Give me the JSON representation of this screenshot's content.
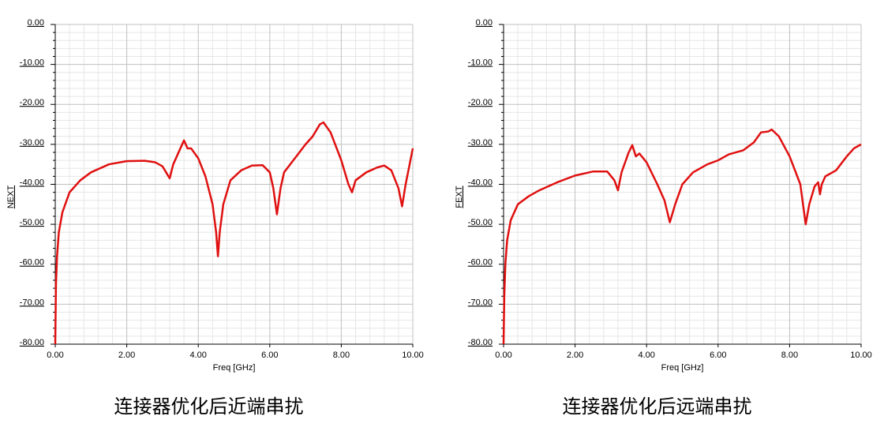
{
  "chart_data": [
    {
      "type": "line",
      "caption": "连接器优化后近端串扰",
      "xlabel": "Freq [GHz]",
      "ylabel": "NEXT",
      "xlim": [
        0,
        10
      ],
      "ylim": [
        -80,
        0
      ],
      "grid": true,
      "xticks": [
        {
          "value": 0,
          "label": "0.00"
        },
        {
          "value": 2,
          "label": "2.00"
        },
        {
          "value": 4,
          "label": "4.00"
        },
        {
          "value": 6,
          "label": "6.00"
        },
        {
          "value": 8,
          "label": "8.00"
        },
        {
          "value": 10,
          "label": "10.00"
        }
      ],
      "yticks": [
        {
          "value": 0,
          "label": "0.00"
        },
        {
          "value": -10,
          "label": "-10.00"
        },
        {
          "value": -20,
          "label": "-20.00"
        },
        {
          "value": -30,
          "label": "-30.00"
        },
        {
          "value": -40,
          "label": "-40.00"
        },
        {
          "value": -50,
          "label": "-50.00"
        },
        {
          "value": -60,
          "label": "-60.00"
        },
        {
          "value": -70,
          "label": "-70.00"
        },
        {
          "value": -80,
          "label": "-80.00"
        }
      ],
      "x": [
        0,
        0.02,
        0.05,
        0.1,
        0.2,
        0.4,
        0.7,
        1.0,
        1.5,
        2.0,
        2.5,
        2.8,
        3.0,
        3.1,
        3.2,
        3.3,
        3.5,
        3.6,
        3.7,
        3.8,
        4.0,
        4.2,
        4.4,
        4.5,
        4.55,
        4.6,
        4.7,
        4.9,
        5.2,
        5.5,
        5.8,
        6.0,
        6.1,
        6.2,
        6.3,
        6.4,
        6.7,
        7.0,
        7.2,
        7.4,
        7.5,
        7.7,
        8.0,
        8.2,
        8.3,
        8.4,
        8.7,
        9.0,
        9.2,
        9.4,
        9.6,
        9.7,
        9.8,
        10.0
      ],
      "series": [
        {
          "color": "#e01010",
          "values": [
            -80,
            -65,
            -58,
            -52,
            -47,
            -42,
            -39,
            -37,
            -35,
            -34.2,
            -34.1,
            -34.5,
            -35.5,
            -37,
            -38.5,
            -35,
            -31,
            -29,
            -31,
            -31,
            -33.5,
            -38,
            -45,
            -52,
            -58,
            -52,
            -45,
            -39,
            -36.5,
            -35.3,
            -35.2,
            -37,
            -41,
            -47.5,
            -41,
            -37,
            -33.5,
            -30,
            -28,
            -25,
            -24.5,
            -27,
            -34,
            -40,
            -42,
            -39,
            -37,
            -35.8,
            -35.3,
            -36.5,
            -41,
            -45.5,
            -40,
            -31
          ]
        }
      ]
    },
    {
      "type": "line",
      "caption": "连接器优化后远端串扰",
      "xlabel": "Freq [GHz]",
      "ylabel": "FEXT",
      "xlim": [
        0,
        10
      ],
      "ylim": [
        -80,
        0
      ],
      "grid": true,
      "xticks": [
        {
          "value": 0,
          "label": "0.00"
        },
        {
          "value": 2,
          "label": "2.00"
        },
        {
          "value": 4,
          "label": "4.00"
        },
        {
          "value": 6,
          "label": "6.00"
        },
        {
          "value": 8,
          "label": "8.00"
        },
        {
          "value": 10,
          "label": "10.00"
        }
      ],
      "yticks": [
        {
          "value": 0,
          "label": "0.00"
        },
        {
          "value": -10,
          "label": "-10.00"
        },
        {
          "value": -20,
          "label": "-20.00"
        },
        {
          "value": -30,
          "label": "-30.00"
        },
        {
          "value": -40,
          "label": "-40.00"
        },
        {
          "value": -50,
          "label": "-50.00"
        },
        {
          "value": -60,
          "label": "-60.00"
        },
        {
          "value": -70,
          "label": "-70.00"
        },
        {
          "value": -80,
          "label": "-80.00"
        }
      ],
      "x": [
        0,
        0.02,
        0.05,
        0.1,
        0.2,
        0.4,
        0.7,
        1.0,
        1.5,
        2.0,
        2.5,
        2.9,
        3.1,
        3.2,
        3.3,
        3.5,
        3.6,
        3.7,
        3.8,
        4.0,
        4.3,
        4.5,
        4.65,
        4.8,
        5.0,
        5.3,
        5.7,
        6.0,
        6.3,
        6.7,
        7.0,
        7.2,
        7.4,
        7.5,
        7.7,
        8.0,
        8.3,
        8.45,
        8.55,
        8.7,
        8.8,
        8.85,
        8.9,
        9.0,
        9.3,
        9.6,
        9.8,
        10.0
      ],
      "series": [
        {
          "color": "#e01010",
          "values": [
            -80,
            -68,
            -60,
            -54,
            -49,
            -45,
            -43,
            -41.5,
            -39.5,
            -37.8,
            -36.8,
            -36.8,
            -39,
            -41.5,
            -37,
            -32,
            -30.2,
            -33,
            -32.3,
            -34.5,
            -40,
            -44,
            -49.5,
            -45,
            -40,
            -37,
            -35,
            -34,
            -32.5,
            -31.5,
            -29.5,
            -27,
            -26.8,
            -26.3,
            -28,
            -33,
            -40,
            -50,
            -45,
            -40.5,
            -39.5,
            -42.5,
            -40,
            -38,
            -36.5,
            -33,
            -31,
            -30
          ]
        }
      ]
    }
  ]
}
